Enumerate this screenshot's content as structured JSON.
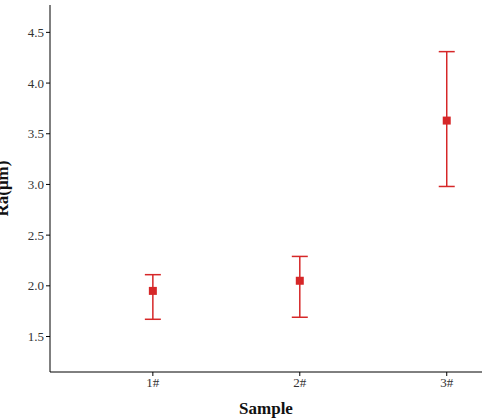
{
  "chart_data": {
    "type": "scatter",
    "x_label": "Sample",
    "y_label": "Ra(μm)",
    "categories": [
      "1#",
      "2#",
      "3#"
    ],
    "values": [
      1.95,
      2.05,
      3.63
    ],
    "errors": [
      [
        0.28,
        0.16
      ],
      [
        0.36,
        0.24
      ],
      [
        0.65,
        0.68
      ]
    ],
    "color": "#d62728",
    "marker": "square",
    "ylim": [
      1.15,
      4.77
    ],
    "yticks": [
      1.5,
      {
        "value": 2,
        "label": "2.0"
      },
      2.5,
      {
        "value": 3,
        "label": "3.0"
      },
      3.5,
      {
        "value": 4,
        "label": "4.0"
      },
      4.5
    ],
    "grid": false
  }
}
